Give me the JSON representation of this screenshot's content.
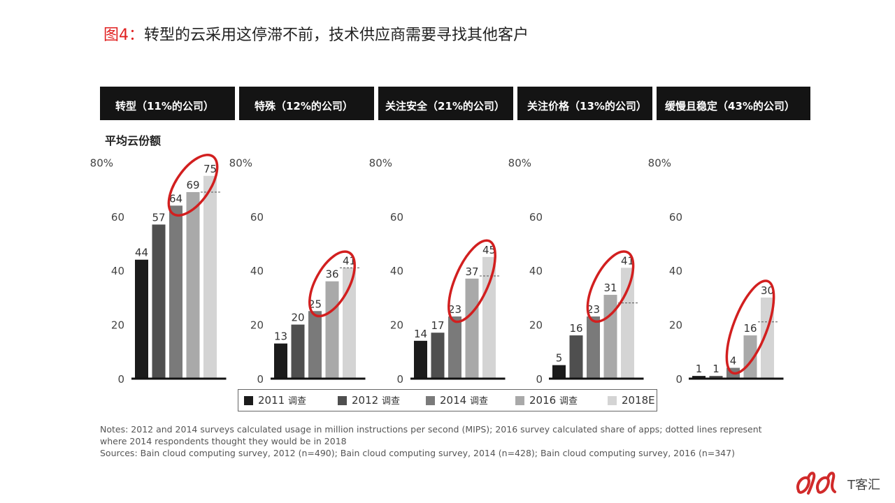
{
  "title": {
    "prefix": "图4：",
    "text": "转型的云采用这停滞不前，技术供应商需要寻找其他客户"
  },
  "y_axis_label": "平均云份额",
  "panel_headers": [
    "转型（11%的公司）",
    "特殊（12%的公司）",
    "关注安全（21%的公司）",
    "关注价格（13%的公司）",
    "缓慢且稳定（43%的公司）"
  ],
  "legend": [
    {
      "year": "2011",
      "suffix": "调查",
      "color": "#1b1b1b"
    },
    {
      "year": "2012",
      "suffix": "调查",
      "color": "#4f4f4f"
    },
    {
      "year": "2014",
      "suffix": "调查",
      "color": "#7a7a7a"
    },
    {
      "year": "2016",
      "suffix": "调查",
      "color": "#a9a9a9"
    },
    {
      "year": "2018E",
      "suffix": "",
      "color": "#d4d4d4"
    }
  ],
  "notes": {
    "line1": "Notes: 2012 and 2014 surveys calculated usage in million instructions per second (MIPS); 2016 survey calculated share of apps; dotted lines represent where 2014 respondents thought they would be in 2018",
    "line2": "Sources: Bain cloud computing survey, 2012 (n=490); Bain cloud computing survey, 2014 (n=428); Bain cloud computing survey, 2016 (n=347)"
  },
  "logo": {
    "text": "T客汇"
  },
  "chart_data": {
    "type": "bar",
    "title": "",
    "ylabel": "平均云份额",
    "ylim": [
      0,
      80
    ],
    "yticks": [
      "0",
      "20",
      "40",
      "60",
      "80%"
    ],
    "categories": [
      "2011 调查",
      "2012 调查",
      "2014 调查",
      "2016 调查",
      "2018E"
    ],
    "panels": [
      {
        "name": "转型（11%的公司）",
        "values": [
          44,
          57,
          64,
          69,
          75
        ],
        "expected_2018_from_2014": 69
      },
      {
        "name": "特殊（12%的公司）",
        "values": [
          13,
          20,
          25,
          36,
          41
        ],
        "expected_2018_from_2014": 41
      },
      {
        "name": "关注安全（21%的公司）",
        "values": [
          14,
          17,
          23,
          37,
          45
        ],
        "expected_2018_from_2014": 38
      },
      {
        "name": "关注价格（13%的公司）",
        "values": [
          5,
          16,
          23,
          31,
          41
        ],
        "expected_2018_from_2014": 28
      },
      {
        "name": "缓慢且稳定（43%的公司）",
        "values": [
          1,
          1,
          4,
          16,
          30
        ],
        "expected_2018_from_2014": 21
      }
    ],
    "grid": false,
    "legend_position": "bottom"
  }
}
